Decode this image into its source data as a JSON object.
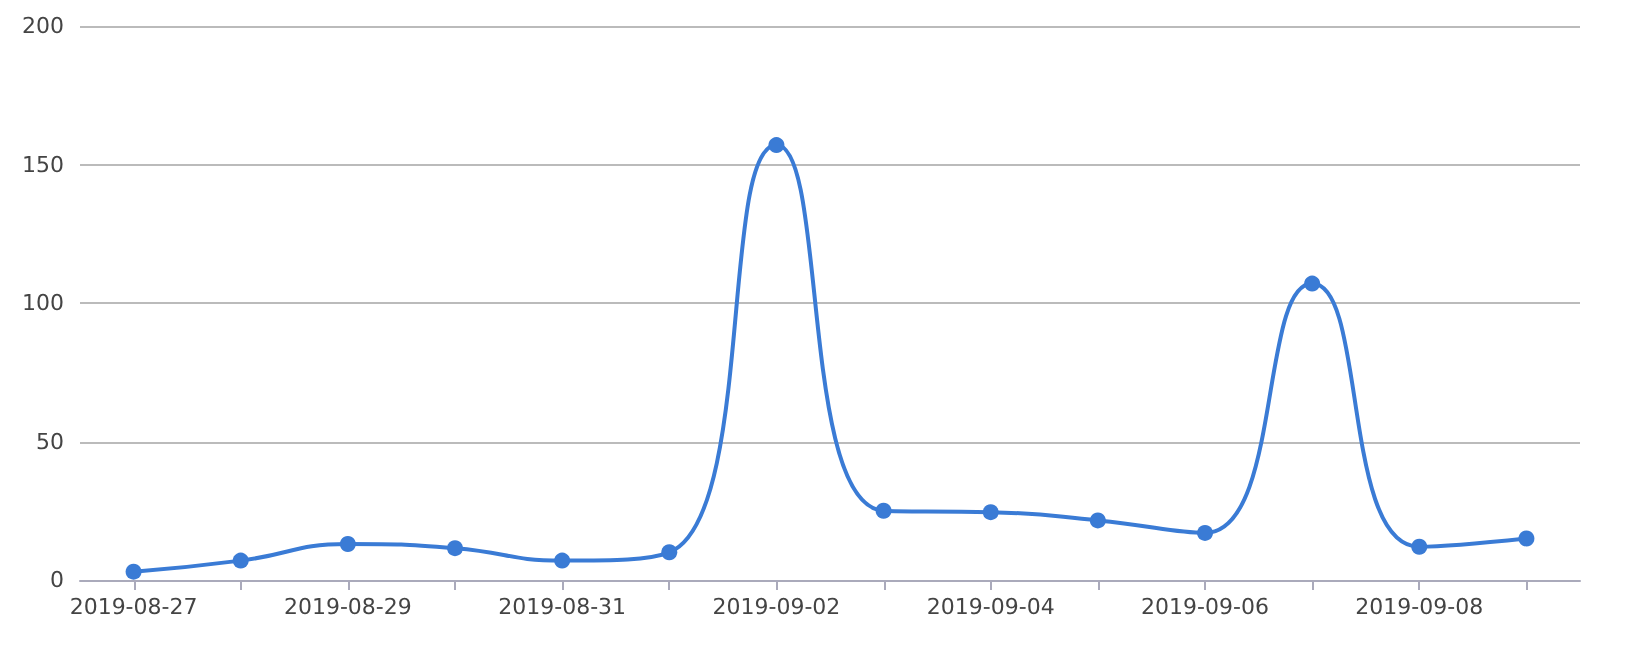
{
  "chart_data": {
    "type": "line",
    "categories": [
      "2019-08-27",
      null,
      "2019-08-29",
      null,
      "2019-08-31",
      null,
      "2019-09-02",
      null,
      "2019-09-04",
      null,
      "2019-09-06",
      null,
      "2019-09-08",
      null
    ],
    "series": [
      {
        "color": "#3a7bd5",
        "values": [
          3,
          7,
          13,
          11.5,
          7,
          10,
          157,
          25,
          24.5,
          21.5,
          17,
          107,
          12,
          15
        ]
      }
    ],
    "ylim": [
      0,
      200
    ],
    "yticks": [
      0,
      50,
      100,
      150,
      200
    ],
    "grid": "y",
    "marker": "circle",
    "line_style": "solid"
  }
}
